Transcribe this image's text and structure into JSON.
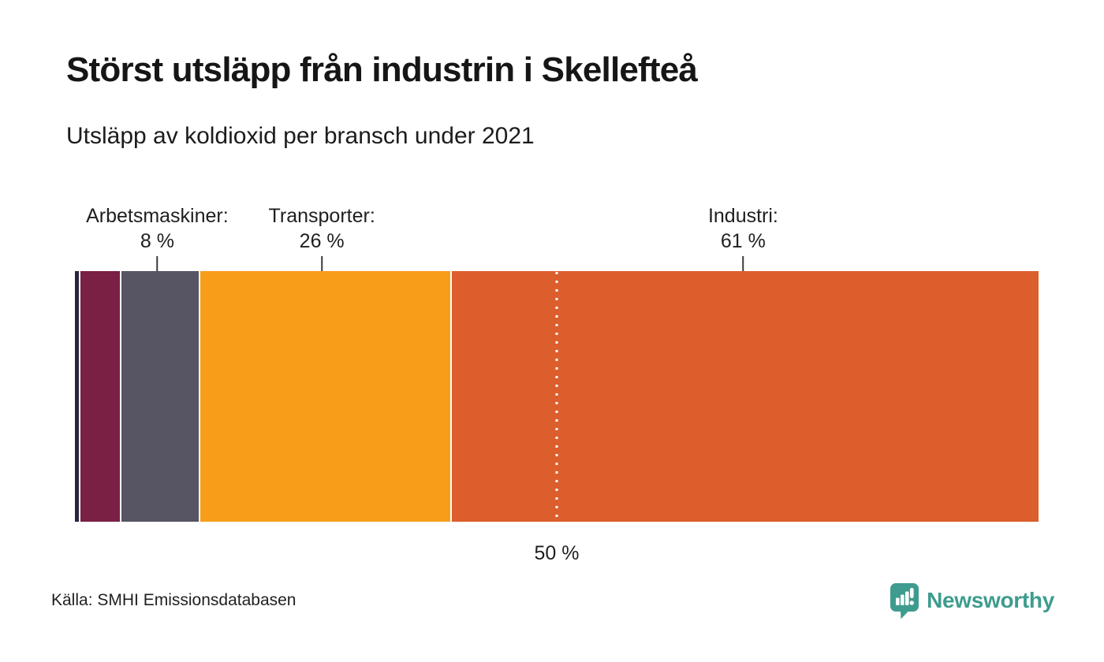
{
  "header": {
    "title": "Störst utsläpp från industrin i Skellefteå",
    "subtitle": "Utsläpp av koldioxid per bransch under 2021"
  },
  "chart_data": {
    "type": "bar",
    "variant": "horizontal-stacked-100pct",
    "title": "Störst utsläpp från industrin i Skellefteå",
    "subtitle": "Utsläpp av koldioxid per bransch under 2021",
    "unit": "%",
    "xlim": [
      0,
      100
    ],
    "grid": false,
    "legend_position": "labels-above-bar",
    "segments": [
      {
        "name": "",
        "value": 0.4,
        "color": "#2b2440",
        "label": null,
        "value_label": null
      },
      {
        "name": "",
        "value": 4.1,
        "color": "#7a2045",
        "label": null,
        "value_label": null
      },
      {
        "name": "Arbetsmaskiner",
        "value": 8,
        "color": "#575463",
        "label": "Arbetsmaskiner:",
        "value_label": "8 %"
      },
      {
        "name": "Transporter",
        "value": 26,
        "color": "#f89d1a",
        "label": "Transporter:",
        "value_label": "26 %"
      },
      {
        "name": "Industri",
        "value": 61,
        "color": "#dc5e2c",
        "label": "Industri:",
        "value_label": "61 %"
      }
    ],
    "reference_line": {
      "value": 50,
      "label": "50 %",
      "style": "dotted-white"
    }
  },
  "footer": {
    "source": "Källa: SMHI Emissionsdatabasen",
    "logo_text": "Newsworthy",
    "logo_color": "#3e9c8e"
  }
}
